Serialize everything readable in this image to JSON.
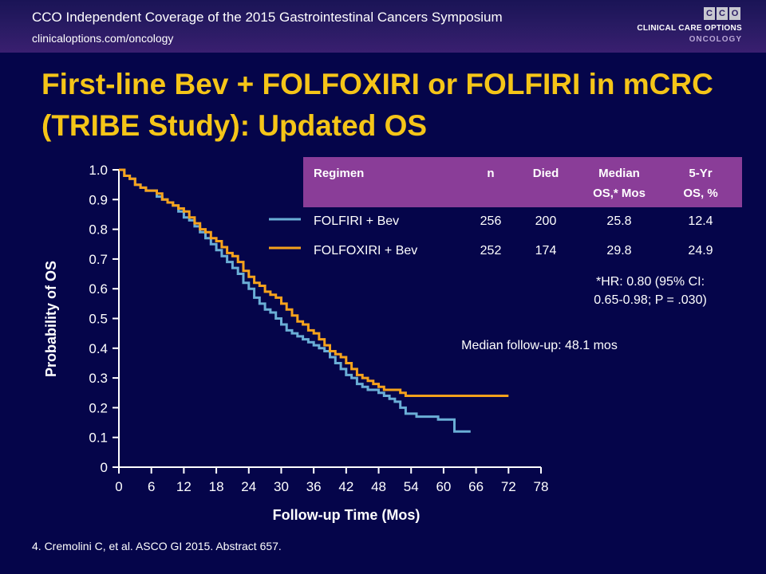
{
  "header": {
    "title": "CCO Independent Coverage of the 2015 Gastrointestinal Cancers Symposium",
    "url": "clinicaloptions.com/oncology",
    "logo_letters": [
      "C",
      "C",
      "O"
    ],
    "logo_line1": "CLINICAL CARE OPTIONS",
    "logo_line2": "ONCOLOGY"
  },
  "slide_title": "First-line Bev + FOLFOXIRI or FOLFIRI in mCRC (TRIBE Study): Updated OS",
  "footnote": "4. Cremolini C, et al. ASCO GI 2015. Abstract 657.",
  "colors": {
    "background": "#05054a",
    "title": "#f5c518",
    "table_header": "#8a3d98",
    "folfiri": "#6aaed6",
    "folfoxiri": "#f5a21c"
  },
  "table": {
    "headers": [
      [
        "Regimen"
      ],
      [
        "n"
      ],
      [
        "Died"
      ],
      [
        "Median",
        "OS,* Mos"
      ],
      [
        "5-Yr",
        "OS, %"
      ]
    ],
    "rows": [
      {
        "regimen": "FOLFIRI + Bev",
        "n": "256",
        "died": "200",
        "median_os": "25.8",
        "five_yr_os": "12.4"
      },
      {
        "regimen": "FOLFOXIRI + Bev",
        "n": "252",
        "died": "174",
        "median_os": "29.8",
        "five_yr_os": "24.9"
      }
    ],
    "hr_note_line1": "*HR: 0.80 (95% CI:",
    "hr_note_line2": "0.65-0.98; P = .030)"
  },
  "median_followup": "Median follow-up: 48.1 mos",
  "chart_data": {
    "type": "line",
    "xlabel": "Follow-up Time (Mos)",
    "ylabel": "Probability of OS",
    "xlim": [
      0,
      78
    ],
    "ylim": [
      0,
      1
    ],
    "x_ticks": [
      0,
      6,
      12,
      18,
      24,
      30,
      36,
      42,
      48,
      54,
      60,
      66,
      72,
      78
    ],
    "y_ticks": [
      "0",
      "0.1",
      "0.2",
      "0.3",
      "0.4",
      "0.5",
      "0.6",
      "0.7",
      "0.8",
      "0.9",
      "1.0"
    ],
    "series": [
      {
        "name": "FOLFIRI + Bev",
        "color": "#6aaed6",
        "points": [
          [
            0,
            1.0
          ],
          [
            1,
            0.98
          ],
          [
            2,
            0.97
          ],
          [
            3,
            0.95
          ],
          [
            4,
            0.94
          ],
          [
            5,
            0.93
          ],
          [
            6,
            0.93
          ],
          [
            7,
            0.91
          ],
          [
            8,
            0.9
          ],
          [
            9,
            0.89
          ],
          [
            10,
            0.88
          ],
          [
            11,
            0.86
          ],
          [
            12,
            0.84
          ],
          [
            13,
            0.83
          ],
          [
            14,
            0.81
          ],
          [
            15,
            0.79
          ],
          [
            16,
            0.77
          ],
          [
            17,
            0.75
          ],
          [
            18,
            0.73
          ],
          [
            19,
            0.71
          ],
          [
            20,
            0.69
          ],
          [
            21,
            0.67
          ],
          [
            22,
            0.65
          ],
          [
            23,
            0.62
          ],
          [
            24,
            0.6
          ],
          [
            25,
            0.57
          ],
          [
            26,
            0.55
          ],
          [
            27,
            0.53
          ],
          [
            28,
            0.52
          ],
          [
            29,
            0.5
          ],
          [
            30,
            0.48
          ],
          [
            31,
            0.46
          ],
          [
            32,
            0.45
          ],
          [
            33,
            0.44
          ],
          [
            34,
            0.43
          ],
          [
            35,
            0.42
          ],
          [
            36,
            0.41
          ],
          [
            37,
            0.4
          ],
          [
            38,
            0.39
          ],
          [
            39,
            0.37
          ],
          [
            40,
            0.35
          ],
          [
            41,
            0.33
          ],
          [
            42,
            0.31
          ],
          [
            43,
            0.3
          ],
          [
            44,
            0.28
          ],
          [
            45,
            0.27
          ],
          [
            46,
            0.26
          ],
          [
            47,
            0.26
          ],
          [
            48,
            0.25
          ],
          [
            49,
            0.24
          ],
          [
            50,
            0.23
          ],
          [
            51,
            0.22
          ],
          [
            52,
            0.2
          ],
          [
            53,
            0.18
          ],
          [
            54,
            0.18
          ],
          [
            55,
            0.17
          ],
          [
            58,
            0.17
          ],
          [
            59,
            0.16
          ],
          [
            62,
            0.16
          ],
          [
            62,
            0.12
          ],
          [
            65,
            0.12
          ]
        ]
      },
      {
        "name": "FOLFOXIRI + Bev",
        "color": "#f5a21c",
        "points": [
          [
            0,
            1.0
          ],
          [
            1,
            0.98
          ],
          [
            2,
            0.97
          ],
          [
            3,
            0.95
          ],
          [
            4,
            0.94
          ],
          [
            5,
            0.93
          ],
          [
            6,
            0.93
          ],
          [
            7,
            0.92
          ],
          [
            8,
            0.9
          ],
          [
            9,
            0.89
          ],
          [
            10,
            0.88
          ],
          [
            11,
            0.87
          ],
          [
            12,
            0.86
          ],
          [
            13,
            0.84
          ],
          [
            14,
            0.82
          ],
          [
            15,
            0.8
          ],
          [
            16,
            0.79
          ],
          [
            17,
            0.77
          ],
          [
            18,
            0.76
          ],
          [
            19,
            0.74
          ],
          [
            20,
            0.72
          ],
          [
            21,
            0.71
          ],
          [
            22,
            0.69
          ],
          [
            23,
            0.66
          ],
          [
            24,
            0.64
          ],
          [
            25,
            0.62
          ],
          [
            26,
            0.61
          ],
          [
            27,
            0.59
          ],
          [
            28,
            0.58
          ],
          [
            29,
            0.57
          ],
          [
            30,
            0.55
          ],
          [
            31,
            0.53
          ],
          [
            32,
            0.51
          ],
          [
            33,
            0.49
          ],
          [
            34,
            0.48
          ],
          [
            35,
            0.46
          ],
          [
            36,
            0.45
          ],
          [
            37,
            0.43
          ],
          [
            38,
            0.41
          ],
          [
            39,
            0.39
          ],
          [
            40,
            0.38
          ],
          [
            41,
            0.37
          ],
          [
            42,
            0.35
          ],
          [
            43,
            0.33
          ],
          [
            44,
            0.31
          ],
          [
            45,
            0.3
          ],
          [
            46,
            0.29
          ],
          [
            47,
            0.28
          ],
          [
            48,
            0.27
          ],
          [
            49,
            0.26
          ],
          [
            50,
            0.26
          ],
          [
            52,
            0.25
          ],
          [
            53,
            0.24
          ],
          [
            72,
            0.24
          ]
        ]
      }
    ]
  }
}
